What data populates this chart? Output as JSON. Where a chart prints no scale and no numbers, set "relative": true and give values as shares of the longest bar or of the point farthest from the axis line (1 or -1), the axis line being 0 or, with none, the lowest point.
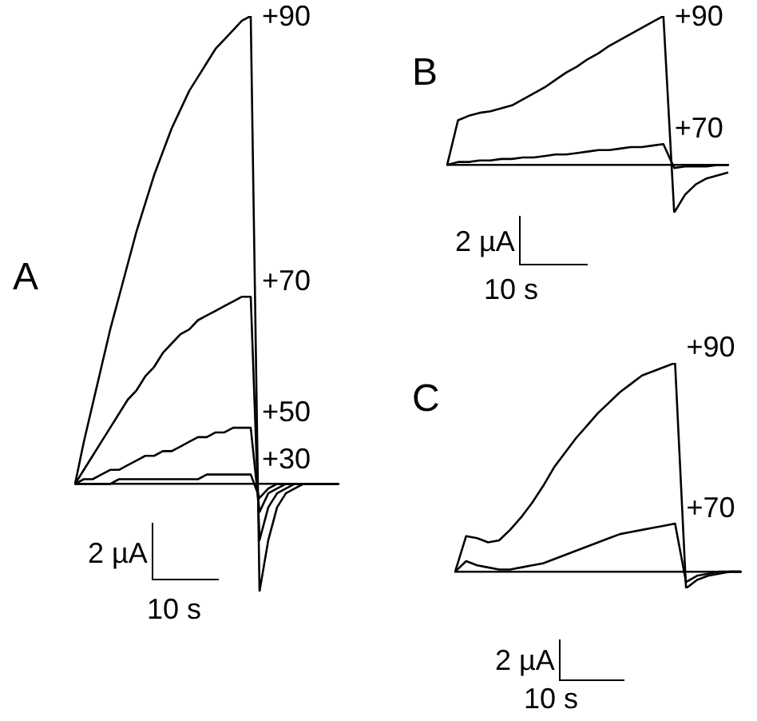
{
  "chart_data": [
    {
      "type": "line",
      "title": "A",
      "relative": true,
      "legend": false,
      "marker": "none",
      "categories": [
        null,
        null,
        null,
        null,
        null,
        null,
        null,
        null,
        null,
        null,
        null,
        null,
        null,
        null,
        null,
        null,
        null,
        null,
        null,
        null,
        null,
        null,
        null,
        null,
        null,
        null,
        null,
        null,
        null,
        null,
        null
      ],
      "annotations": [
        "2 µA",
        "10 s"
      ],
      "series": [
        {
          "name": "+90",
          "color": "#000000",
          "values": [
            0,
            0.09,
            0.17,
            0.25,
            0.33,
            0.4,
            0.47,
            0.54,
            0.6,
            0.66,
            0.71,
            0.76,
            0.8,
            0.84,
            0.87,
            0.9,
            0.93,
            0.95,
            0.97,
            0.99,
            1,
            -0.23,
            -0.12,
            -0.05,
            -0.02,
            -0.01,
            0,
            0,
            0,
            0,
            0
          ]
        },
        {
          "name": "+70",
          "color": "#000000",
          "values": [
            0,
            0.03,
            0.06,
            0.09,
            0.12,
            0.15,
            0.18,
            0.2,
            0.23,
            0.25,
            0.28,
            0.3,
            0.32,
            0.33,
            0.35,
            0.36,
            0.37,
            0.38,
            0.39,
            0.4,
            0.4,
            -0.12,
            -0.05,
            -0.02,
            -0.01,
            0,
            0,
            0,
            0,
            0,
            0
          ]
        },
        {
          "name": "+50",
          "color": "#000000",
          "values": [
            0,
            0.01,
            0.01,
            0.02,
            0.03,
            0.03,
            0.04,
            0.05,
            0.06,
            0.06,
            0.07,
            0.07,
            0.08,
            0.09,
            0.1,
            0.1,
            0.11,
            0.11,
            0.12,
            0.12,
            0.12,
            -0.06,
            -0.02,
            -0.01,
            0,
            0,
            0,
            0,
            0,
            0,
            0
          ]
        },
        {
          "name": "+30",
          "color": "#000000",
          "values": [
            0,
            0,
            0,
            0,
            0,
            0.01,
            0.01,
            0.01,
            0.01,
            0.01,
            0.01,
            0.01,
            0.01,
            0.01,
            0.01,
            0.02,
            0.02,
            0.02,
            0.02,
            0.02,
            0.02,
            -0.03,
            -0.01,
            0,
            0,
            0,
            0,
            0,
            0,
            0,
            0
          ]
        }
      ]
    },
    {
      "type": "line",
      "title": "B",
      "relative": true,
      "legend": false,
      "marker": "none",
      "categories": [
        null,
        null,
        null,
        null,
        null,
        null,
        null,
        null,
        null,
        null,
        null,
        null,
        null,
        null,
        null,
        null,
        null,
        null,
        null,
        null,
        null,
        null,
        null,
        null,
        null,
        null,
        null
      ],
      "annotations": [
        "2 µA",
        "10 s"
      ],
      "series": [
        {
          "name": "+90",
          "color": "#000000",
          "values": [
            0,
            0.3,
            0.33,
            0.35,
            0.36,
            0.38,
            0.4,
            0.44,
            0.48,
            0.52,
            0.57,
            0.62,
            0.66,
            0.71,
            0.75,
            0.8,
            0.84,
            0.88,
            0.92,
            0.96,
            1,
            -0.32,
            -0.2,
            -0.13,
            -0.09,
            -0.07,
            -0.05
          ]
        },
        {
          "name": "+70",
          "color": "#000000",
          "values": [
            0,
            0.02,
            0.02,
            0.03,
            0.03,
            0.04,
            0.04,
            0.05,
            0.05,
            0.06,
            0.07,
            0.07,
            0.08,
            0.09,
            0.1,
            0.1,
            0.11,
            0.12,
            0.12,
            0.13,
            0.14,
            -0.02,
            -0.01,
            -0.01,
            -0.01,
            0,
            0
          ]
        }
      ]
    },
    {
      "type": "line",
      "title": "C",
      "relative": true,
      "legend": false,
      "marker": "none",
      "categories": [
        null,
        null,
        null,
        null,
        null,
        null,
        null,
        null,
        null,
        null,
        null,
        null,
        null,
        null,
        null,
        null,
        null,
        null,
        null,
        null,
        null,
        null,
        null,
        null,
        null,
        null,
        null
      ],
      "annotations": [
        "2 µA",
        "10 s"
      ],
      "series": [
        {
          "name": "+90",
          "color": "#000000",
          "values": [
            0,
            0.17,
            0.16,
            0.14,
            0.15,
            0.2,
            0.26,
            0.33,
            0.41,
            0.5,
            0.57,
            0.64,
            0.7,
            0.76,
            0.81,
            0.86,
            0.9,
            0.94,
            0.96,
            0.98,
            1,
            -0.08,
            -0.04,
            -0.02,
            -0.01,
            0,
            0
          ]
        },
        {
          "name": "+70",
          "color": "#000000",
          "values": [
            0,
            0.05,
            0.03,
            0.02,
            0.01,
            0.01,
            0.02,
            0.03,
            0.04,
            0.06,
            0.08,
            0.1,
            0.12,
            0.14,
            0.16,
            0.18,
            0.19,
            0.2,
            0.21,
            0.22,
            0.23,
            -0.05,
            -0.02,
            -0.01,
            0,
            0,
            0
          ]
        }
      ]
    }
  ]
}
